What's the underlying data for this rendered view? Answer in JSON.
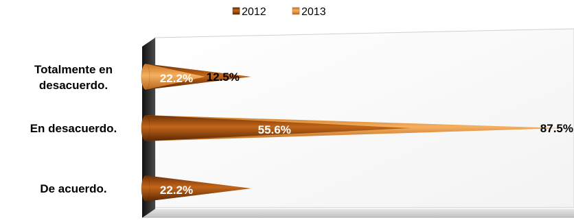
{
  "colors": {
    "series_2012": "#a14e0c",
    "series_2013": "#e8902e",
    "wall": "#2b2b2b",
    "floor": "#d3d3d3"
  },
  "chart_data": {
    "type": "bar",
    "orientation": "horizontal",
    "style": "3d-cone",
    "categories": [
      "Totalmente en desacuerdo.",
      "En desacuerdo.",
      "De acuerdo."
    ],
    "category_lines": [
      [
        "Totalmente en",
        "desacuerdo."
      ],
      [
        "En desacuerdo."
      ],
      [
        "De acuerdo."
      ]
    ],
    "series": [
      {
        "name": "2012",
        "values": [
          22.2,
          55.6,
          22.2
        ],
        "labels": [
          "22.2%",
          "55.6%",
          "22.2%"
        ]
      },
      {
        "name": "2013",
        "values": [
          12.5,
          87.5,
          0
        ],
        "labels": [
          "12.5%",
          "87.5%",
          ""
        ]
      }
    ],
    "unit": "%",
    "xlim": [
      0,
      90
    ],
    "legend_position": "top",
    "grid": false,
    "title": "",
    "xlabel": "",
    "ylabel": ""
  }
}
